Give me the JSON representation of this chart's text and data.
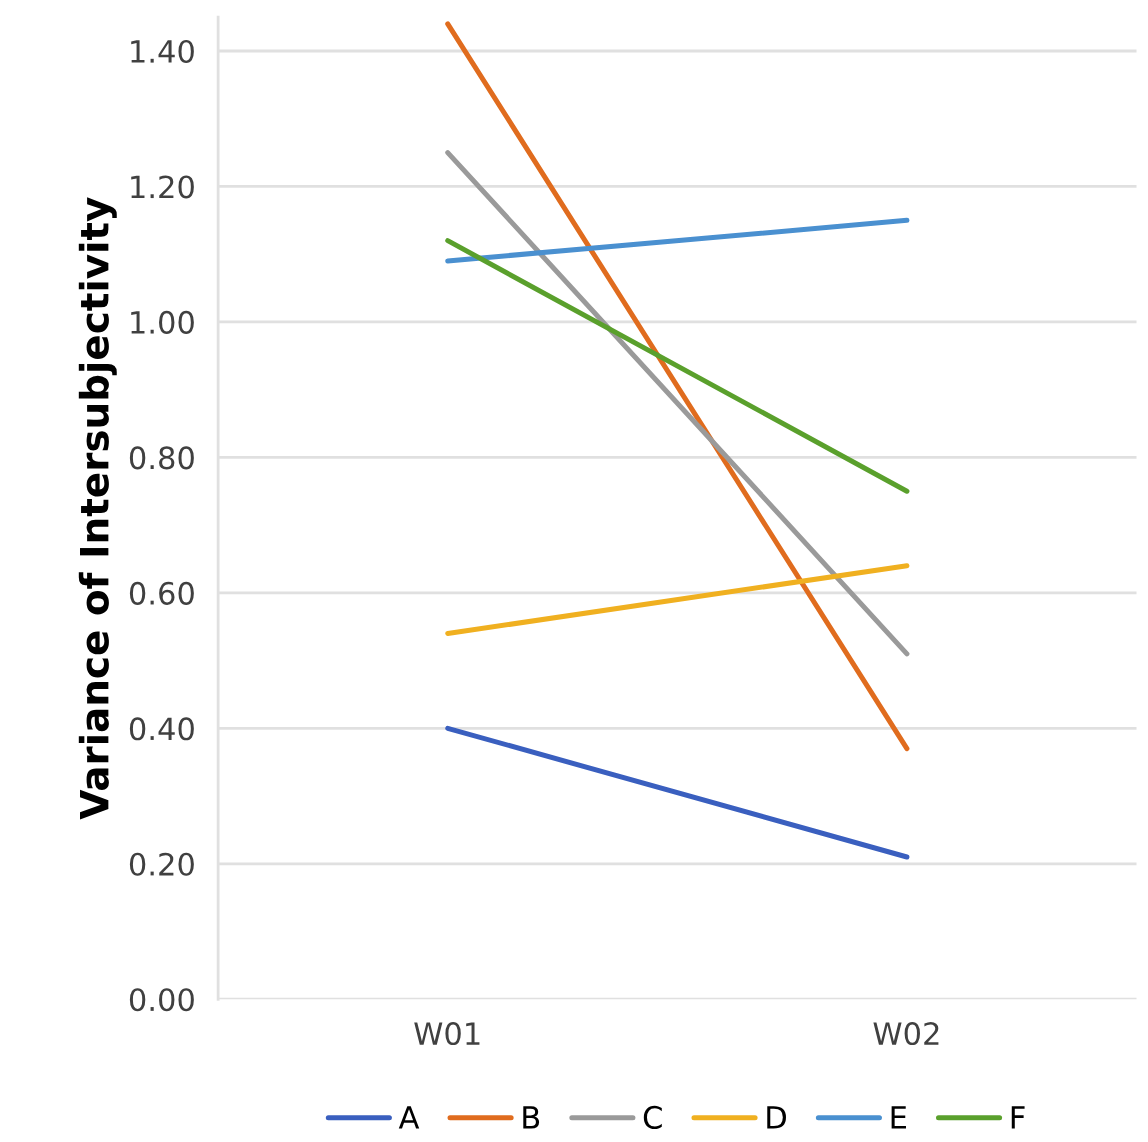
{
  "chart_data": {
    "type": "line",
    "ylabel": "Variance of Intersubjectivity",
    "categories": [
      "W01",
      "W02"
    ],
    "series": [
      {
        "name": "A",
        "color": "#3a5fbf",
        "values": [
          0.4,
          0.21
        ]
      },
      {
        "name": "B",
        "color": "#e06c1e",
        "values": [
          1.44,
          0.37
        ]
      },
      {
        "name": "C",
        "color": "#9a9a9a",
        "values": [
          1.25,
          0.51
        ]
      },
      {
        "name": "D",
        "color": "#f0b020",
        "values": [
          0.54,
          0.64
        ]
      },
      {
        "name": "E",
        "color": "#4a90d0",
        "values": [
          1.09,
          1.15
        ]
      },
      {
        "name": "F",
        "color": "#5aa02c",
        "values": [
          1.12,
          0.75
        ]
      }
    ],
    "ylim": [
      0,
      1.45
    ],
    "yticks": [
      {
        "value": 0,
        "label": "0.00"
      },
      {
        "value": 0.2,
        "label": "0.20"
      },
      {
        "value": 0.4,
        "label": "0.40"
      },
      {
        "value": 0.6,
        "label": "0.60"
      },
      {
        "value": 0.8,
        "label": "0.80"
      },
      {
        "value": 1.0,
        "label": "1.00"
      },
      {
        "value": 1.2,
        "label": "1.20"
      },
      {
        "value": 1.4,
        "label": "1.40"
      }
    ],
    "grid": "y",
    "legend": "bottom",
    "marker": "none",
    "line_style": "solid"
  }
}
